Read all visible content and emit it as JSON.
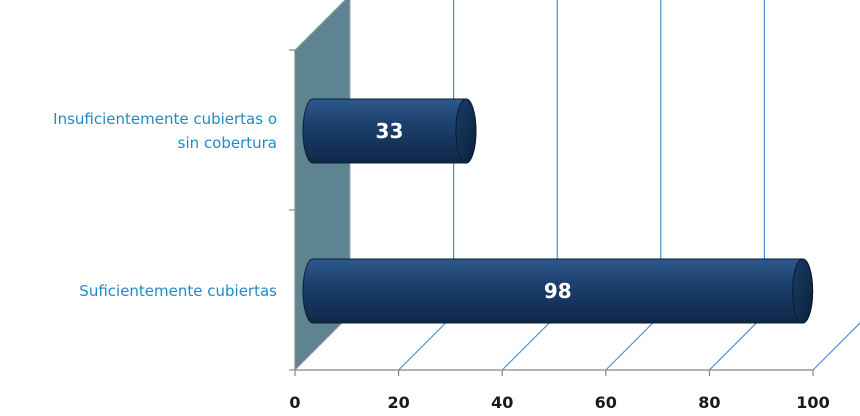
{
  "chart_data": {
    "type": "bar",
    "orientation": "horizontal",
    "style": "3d-cylinder",
    "categories": [
      "Insuficientemente cubiertas o sin cobertura",
      "Suficientemente cubiertas"
    ],
    "category_lines": [
      [
        "Insuficientemente cubiertas o",
        "sin cobertura"
      ],
      [
        "Suficientemente cubiertas"
      ]
    ],
    "values": [
      33,
      98
    ],
    "data_labels": [
      "33",
      "98"
    ],
    "xlim": [
      0,
      100
    ],
    "xticks": [
      0,
      20,
      40,
      60,
      80,
      100
    ],
    "xtick_labels": [
      "0",
      "20",
      "40",
      "60",
      "80",
      "100"
    ],
    "grid": true,
    "legend": "none",
    "colors": {
      "bar": "#17375e",
      "bar_highlight": "#2f5a8e",
      "wall": "#5e8391",
      "gridline": "#4f8fcf",
      "category_text": "#1f8ac9",
      "data_label_text": "#ffffff"
    }
  }
}
